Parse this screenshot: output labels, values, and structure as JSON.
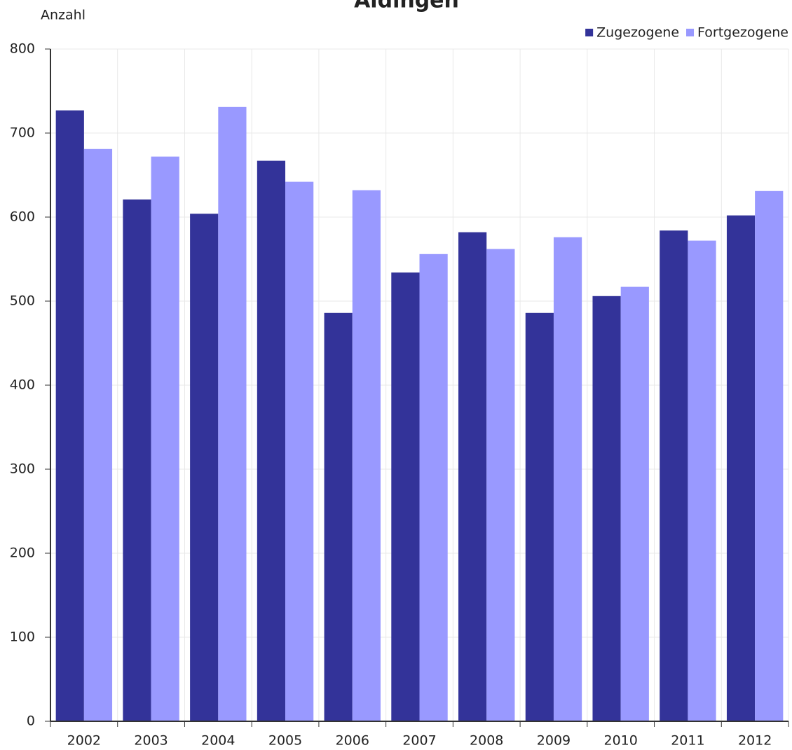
{
  "chart_data": {
    "type": "bar",
    "title": "Aldingen",
    "y_label": "Anzahl",
    "categories": [
      "2002",
      "2003",
      "2004",
      "2005",
      "2006",
      "2007",
      "2008",
      "2009",
      "2010",
      "2011",
      "2012"
    ],
    "series": [
      {
        "name": "Zugezogene",
        "color": "#333399",
        "values": [
          727,
          621,
          604,
          667,
          486,
          534,
          582,
          486,
          506,
          584,
          602
        ]
      },
      {
        "name": "Fortgezogene",
        "color": "#9999ff",
        "values": [
          681,
          672,
          731,
          642,
          632,
          556,
          562,
          576,
          517,
          572,
          631
        ]
      }
    ],
    "ylim": [
      0,
      800
    ],
    "yticks": [
      0,
      100,
      200,
      300,
      400,
      500,
      600,
      700,
      800
    ],
    "grid": true,
    "legend": "top-right"
  }
}
